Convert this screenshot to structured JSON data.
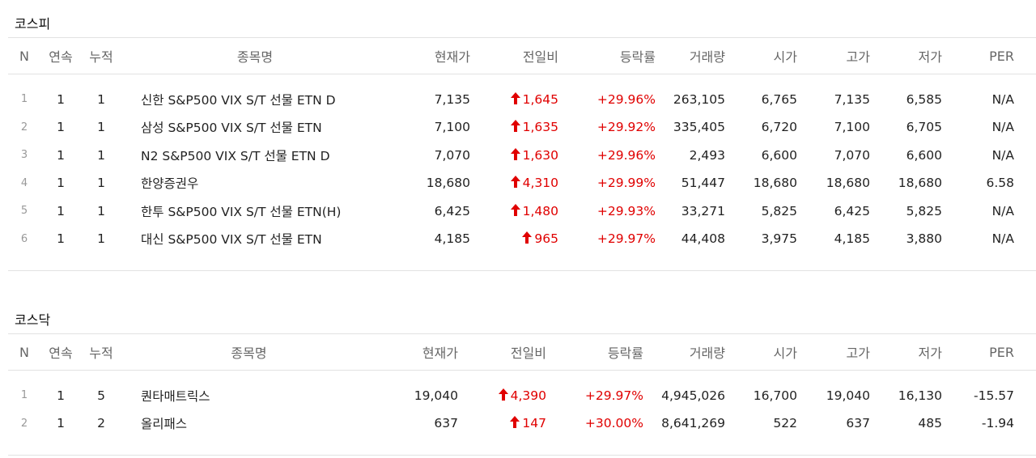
{
  "columns": [
    "N",
    "연속",
    "누적",
    "종목명",
    "현재가",
    "전일비",
    "등락률",
    "거래량",
    "시가",
    "고가",
    "저가",
    "PER"
  ],
  "icons": {
    "change_up": "arrow-up-icon"
  },
  "colors": {
    "up": "#e00000",
    "index": "#999999",
    "header": "#666666"
  },
  "sections": [
    {
      "title": "코스피",
      "rows": [
        {
          "n": "1",
          "consec": "1",
          "cumul": "1",
          "name": "신한 S&P500 VIX S/T 선물 ETN D",
          "price": "7,135",
          "diff": "1,645",
          "rate": "+29.96%",
          "volume": "263,105",
          "open": "6,765",
          "high": "7,135",
          "low": "6,585",
          "per": "N/A"
        },
        {
          "n": "2",
          "consec": "1",
          "cumul": "1",
          "name": "삼성 S&P500 VIX S/T 선물 ETN",
          "price": "7,100",
          "diff": "1,635",
          "rate": "+29.92%",
          "volume": "335,405",
          "open": "6,720",
          "high": "7,100",
          "low": "6,705",
          "per": "N/A"
        },
        {
          "n": "3",
          "consec": "1",
          "cumul": "1",
          "name": "N2 S&P500 VIX S/T 선물 ETN D",
          "price": "7,070",
          "diff": "1,630",
          "rate": "+29.96%",
          "volume": "2,493",
          "open": "6,600",
          "high": "7,070",
          "low": "6,600",
          "per": "N/A"
        },
        {
          "n": "4",
          "consec": "1",
          "cumul": "1",
          "name": "한양증권우",
          "price": "18,680",
          "diff": "4,310",
          "rate": "+29.99%",
          "volume": "51,447",
          "open": "18,680",
          "high": "18,680",
          "low": "18,680",
          "per": "6.58"
        },
        {
          "n": "5",
          "consec": "1",
          "cumul": "1",
          "name": "한투 S&P500 VIX S/T 선물 ETN(H)",
          "price": "6,425",
          "diff": "1,480",
          "rate": "+29.93%",
          "volume": "33,271",
          "open": "5,825",
          "high": "6,425",
          "low": "5,825",
          "per": "N/A"
        },
        {
          "n": "6",
          "consec": "1",
          "cumul": "1",
          "name": "대신 S&P500 VIX S/T 선물 ETN",
          "price": "4,185",
          "diff": "965",
          "rate": "+29.97%",
          "volume": "44,408",
          "open": "3,975",
          "high": "4,185",
          "low": "3,880",
          "per": "N/A"
        }
      ]
    },
    {
      "title": "코스닥",
      "rows": [
        {
          "n": "1",
          "consec": "1",
          "cumul": "5",
          "name": "퀀타매트릭스",
          "price": "19,040",
          "diff": "4,390",
          "rate": "+29.97%",
          "volume": "4,945,026",
          "open": "16,700",
          "high": "19,040",
          "low": "16,130",
          "per": "-15.57"
        },
        {
          "n": "2",
          "consec": "1",
          "cumul": "2",
          "name": "올리패스",
          "price": "637",
          "diff": "147",
          "rate": "+30.00%",
          "volume": "8,641,269",
          "open": "522",
          "high": "637",
          "low": "485",
          "per": "-1.94"
        }
      ]
    }
  ]
}
